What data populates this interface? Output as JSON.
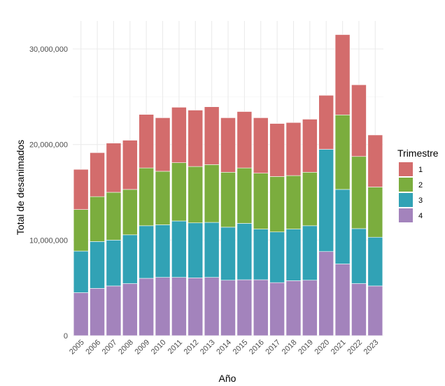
{
  "chart_data": {
    "type": "bar",
    "stacked": true,
    "title": "",
    "xlabel": "Año",
    "ylabel": "Total de desanimados",
    "ylim": [
      0,
      32000000
    ],
    "yticks": [
      0,
      10000000,
      20000000,
      30000000
    ],
    "ytick_labels": [
      "0",
      "10,000,000",
      "20,000,000",
      "30,000,000"
    ],
    "grid": true,
    "legend_position": "right",
    "categories": [
      "2005",
      "2006",
      "2007",
      "2008",
      "2009",
      "2010",
      "2011",
      "2012",
      "2013",
      "2014",
      "2015",
      "2016",
      "2017",
      "2018",
      "2019",
      "2020",
      "2021",
      "2022",
      "2023"
    ],
    "series": [
      {
        "name": "4",
        "color": "#a383bc",
        "values": [
          4500000,
          4950000,
          5200000,
          5450000,
          6000000,
          6100000,
          6100000,
          6050000,
          6100000,
          5800000,
          5850000,
          5850000,
          5550000,
          5750000,
          5800000,
          8800000,
          7500000,
          5450000,
          5200000
        ]
      },
      {
        "name": "3",
        "color": "#31a2b5",
        "values": [
          4350000,
          4900000,
          4800000,
          5100000,
          5500000,
          5500000,
          5900000,
          5750000,
          5750000,
          5550000,
          5900000,
          5300000,
          5300000,
          5400000,
          5700000,
          10700000,
          7800000,
          5750000,
          5100000
        ]
      },
      {
        "name": "2",
        "color": "#7bad3e",
        "values": [
          4350000,
          4700000,
          5000000,
          4750000,
          6050000,
          5600000,
          6100000,
          5900000,
          6050000,
          5750000,
          5800000,
          5850000,
          5800000,
          5600000,
          5600000,
          0,
          7800000,
          7550000,
          5250000
        ]
      },
      {
        "name": "1",
        "color": "#d36c6c",
        "values": [
          4200000,
          4600000,
          5150000,
          5150000,
          5600000,
          5600000,
          5800000,
          5900000,
          6050000,
          5700000,
          5900000,
          5800000,
          5550000,
          5550000,
          5550000,
          5650000,
          8400000,
          7500000,
          5450000
        ]
      }
    ],
    "legend": {
      "title": "Trimestre",
      "entries": [
        "1",
        "2",
        "3",
        "4"
      ]
    }
  }
}
